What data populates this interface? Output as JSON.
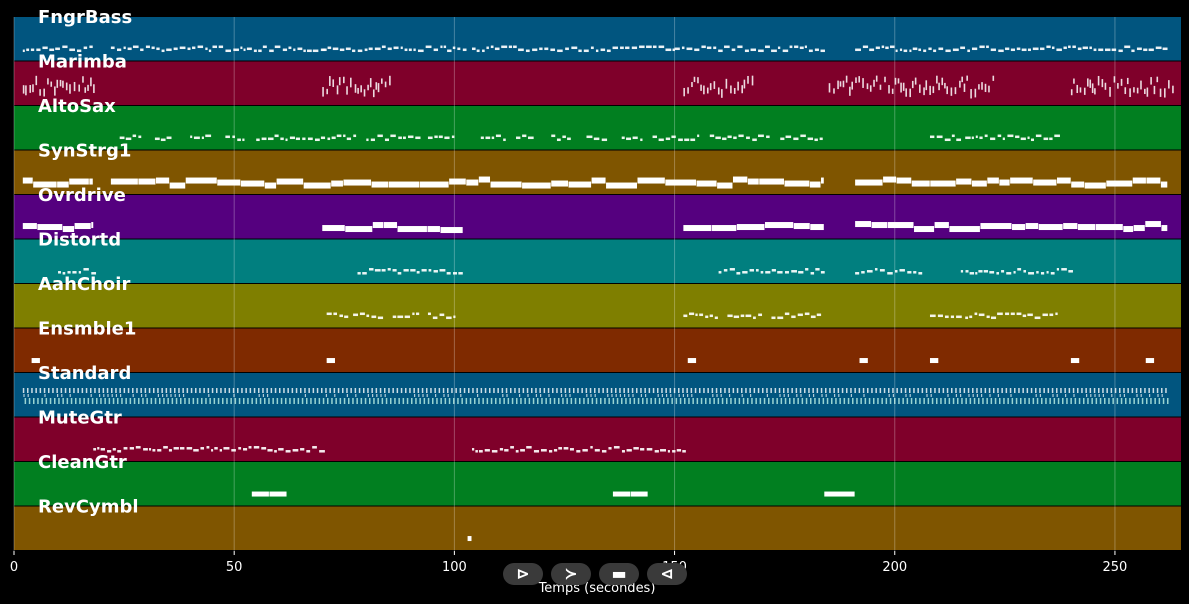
{
  "chart_data": {
    "type": "piano-roll",
    "title": "",
    "xlabel": "Temps (secondes)",
    "ylabel": "",
    "xlim": [
      0,
      265
    ],
    "xticks": [
      0,
      50,
      100,
      150,
      200,
      250
    ],
    "grid": true,
    "tracks": [
      {
        "name": "FngrBass",
        "color": "#01557f",
        "style": "notes",
        "segments": [
          [
            2,
            18
          ],
          [
            22,
            70
          ],
          [
            70,
            102
          ],
          [
            104,
            150
          ],
          [
            150,
            184
          ],
          [
            191,
            262
          ]
        ]
      },
      {
        "name": "Marimba",
        "color": "#7f002a",
        "style": "dense",
        "segments": [
          [
            2,
            18
          ],
          [
            70,
            86
          ],
          [
            152,
            168
          ],
          [
            185,
            223
          ],
          [
            240,
            263
          ]
        ]
      },
      {
        "name": "AltoSax",
        "color": "#017f20",
        "style": "phrases",
        "segments": [
          [
            24,
            29
          ],
          [
            32,
            36
          ],
          [
            40,
            45
          ],
          [
            48,
            52
          ],
          [
            55,
            63
          ],
          [
            64,
            78
          ],
          [
            80,
            92
          ],
          [
            94,
            100
          ],
          [
            106,
            112
          ],
          [
            114,
            118
          ],
          [
            122,
            126
          ],
          [
            130,
            135
          ],
          [
            138,
            143
          ],
          [
            145,
            156
          ],
          [
            158,
            172
          ],
          [
            174,
            184
          ],
          [
            208,
            214
          ],
          [
            216,
            237
          ]
        ]
      },
      {
        "name": "SynStrg1",
        "color": "#7f5500",
        "style": "bars",
        "segments": [
          [
            2,
            18
          ],
          [
            22,
            184
          ],
          [
            191,
            262
          ]
        ]
      },
      {
        "name": "Ovrdrive",
        "color": "#55007f",
        "style": "bars",
        "segments": [
          [
            2,
            18
          ],
          [
            70,
            102
          ],
          [
            152,
            184
          ],
          [
            191,
            262
          ]
        ]
      },
      {
        "name": "Distortd",
        "color": "#017f7f",
        "style": "notes",
        "segments": [
          [
            10,
            18
          ],
          [
            78,
            102
          ],
          [
            160,
            184
          ],
          [
            191,
            206
          ],
          [
            215,
            240
          ]
        ]
      },
      {
        "name": "AahChoir",
        "color": "#7f7f00",
        "style": "phrases",
        "segments": [
          [
            71,
            75
          ],
          [
            77,
            84
          ],
          [
            86,
            92
          ],
          [
            94,
            100
          ],
          [
            152,
            160
          ],
          [
            162,
            170
          ],
          [
            172,
            183
          ],
          [
            208,
            214
          ],
          [
            216,
            237
          ]
        ]
      },
      {
        "name": "Ensmble1",
        "color": "#7f2a00",
        "style": "blocks",
        "segments": [
          [
            4,
            6
          ],
          [
            71,
            73
          ],
          [
            153,
            155
          ],
          [
            192,
            194
          ],
          [
            208,
            210
          ],
          [
            240,
            242
          ],
          [
            257,
            259
          ]
        ]
      },
      {
        "name": "Standard",
        "color": "#01557f",
        "style": "drums",
        "segments": [
          [
            2,
            262
          ]
        ]
      },
      {
        "name": "MuteGtr",
        "color": "#7f002a",
        "style": "notes",
        "segments": [
          [
            18,
            70
          ],
          [
            104,
            152
          ]
        ]
      },
      {
        "name": "CleanGtr",
        "color": "#017f20",
        "style": "blocks",
        "segments": [
          [
            54,
            58
          ],
          [
            58,
            62
          ],
          [
            136,
            140
          ],
          [
            140,
            144
          ],
          [
            184,
            191
          ]
        ]
      },
      {
        "name": "RevCymbl",
        "color": "#7f5500",
        "style": "blocks",
        "segments": [
          [
            103,
            104
          ]
        ]
      }
    ]
  },
  "controls": {
    "play_label": "⊳",
    "forward_label": "≻",
    "stop_label": "▬",
    "rewind_label": "⊲"
  }
}
